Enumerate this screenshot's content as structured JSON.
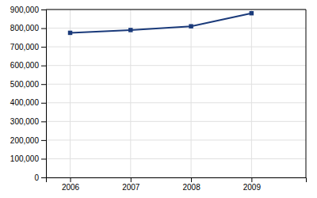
{
  "chart_data": {
    "type": "line",
    "x": [
      2006,
      2007,
      2008,
      2009
    ],
    "values": [
      775000,
      790000,
      810000,
      880000
    ],
    "color": "#1a3a7a",
    "marker": "square",
    "xlim": [
      2005.6,
      2009.9
    ],
    "xticks": [
      2006,
      2007,
      2008,
      2009
    ],
    "ylim": [
      0,
      900000
    ],
    "yticks": [
      0,
      {
        "value": 100000,
        "label": "100,000"
      },
      {
        "value": 200000,
        "label": "200,000"
      },
      {
        "value": 300000,
        "label": "300,000"
      },
      {
        "value": 400000,
        "label": "400,000"
      },
      {
        "value": 500000,
        "label": "500,000"
      },
      {
        "value": 600000,
        "label": "600,000"
      },
      {
        "value": 700000,
        "label": "700,000"
      },
      {
        "value": 800000,
        "label": "800,000"
      },
      {
        "value": 900000,
        "label": "900,000"
      }
    ],
    "grid": true
  }
}
